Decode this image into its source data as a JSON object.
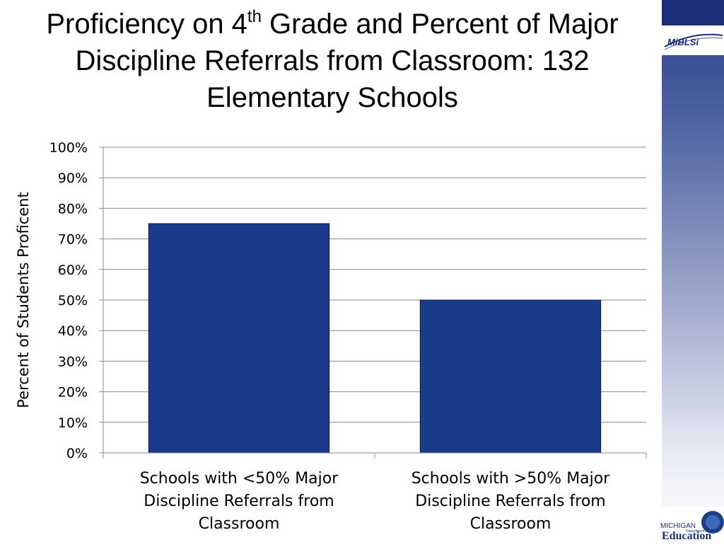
{
  "title": {
    "prefix": "Proficiency on 4",
    "superscript": "th",
    "suffix": " Grade and Percent of Major Discipline Referrals from Classroom: 132 Elementary Schools"
  },
  "logos": {
    "mibls": "MiBLSi",
    "michigan": "MICHIGAN",
    "department": "Department of",
    "education": "Education"
  },
  "chart_data": {
    "type": "bar",
    "categories": [
      [
        "Schools with <50% Major",
        "Discipline Referrals from",
        "Classroom"
      ],
      [
        "Schools with >50% Major",
        "Discipline Referrals from",
        "Classroom"
      ]
    ],
    "values": [
      75,
      50
    ],
    "ylabel": "Percent of Students Proficent",
    "ylim": [
      0,
      100
    ],
    "yticks": [
      "0%",
      "10%",
      "20%",
      "30%",
      "40%",
      "50%",
      "60%",
      "70%",
      "80%",
      "90%",
      "100%"
    ],
    "grid": true,
    "bar_color": "#1a3a8a",
    "bar_stroke": "#0d1a40"
  }
}
